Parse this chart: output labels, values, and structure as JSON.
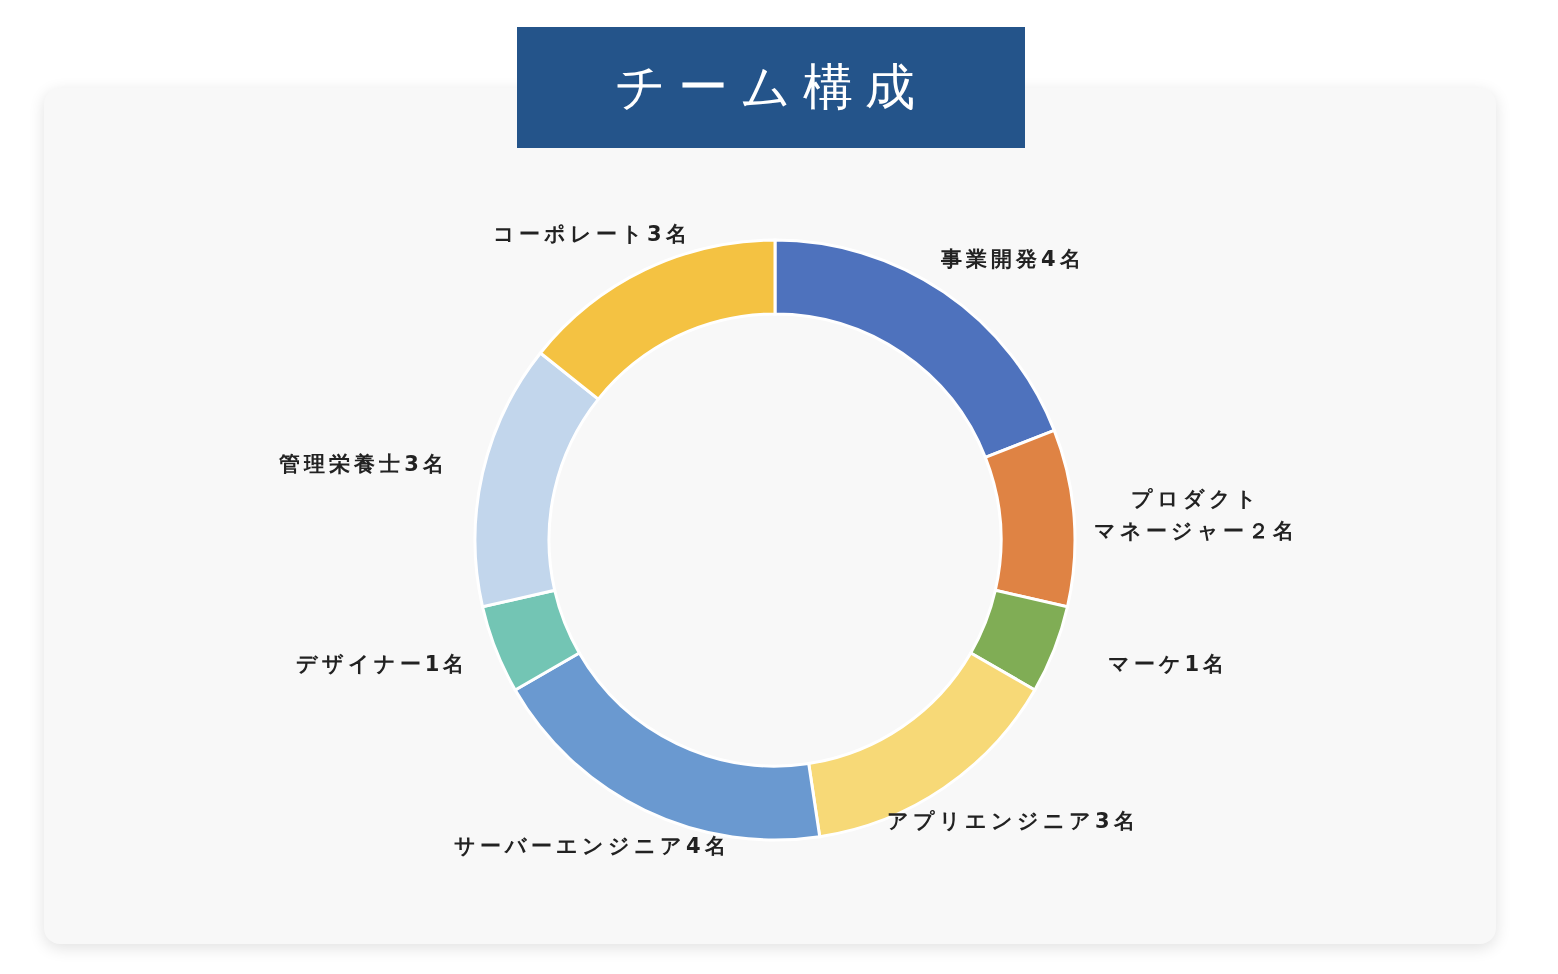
{
  "chart_data": {
    "type": "donut",
    "title": "チーム構成",
    "categories": [
      "事業開発",
      "プロダクトマネージャー",
      "マーケ",
      "アプリエンジニア",
      "サーバーエンジニア",
      "デザイナー",
      "管理栄養士",
      "コーポレート"
    ],
    "values": [
      4,
      2,
      1,
      3,
      4,
      1,
      3,
      3
    ],
    "value_labels": [
      "4名",
      "２名",
      "1名",
      "3名",
      "4名",
      "1名",
      "3名",
      "3名"
    ],
    "colors": [
      "#4e72bd",
      "#df8344",
      "#80ad55",
      "#f7d977",
      "#6a99d0",
      "#73c5b4",
      "#c2d6ec",
      "#f4c242"
    ],
    "legend": false
  }
}
